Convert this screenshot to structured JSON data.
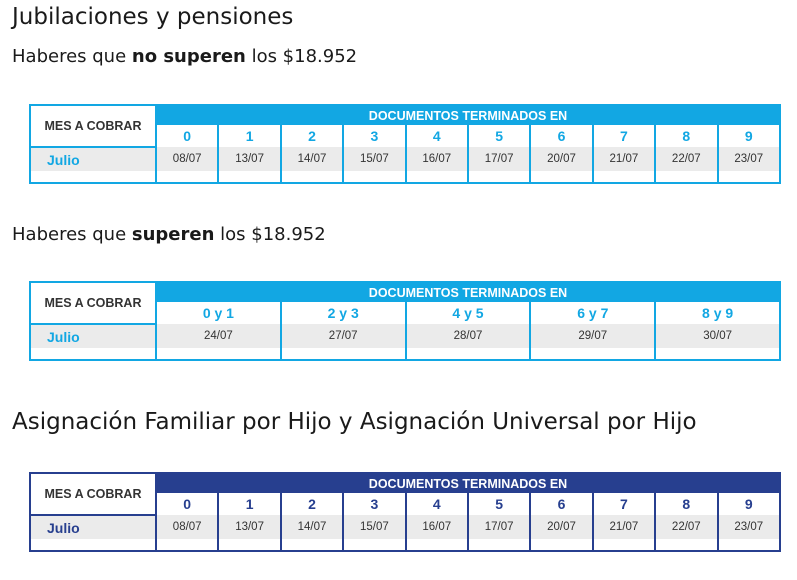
{
  "section1": {
    "title": "Jubilaciones y pensiones",
    "sub1": {
      "prefix": "Haberes que ",
      "bold": "no superen",
      "suffix": " los $18.952"
    },
    "sub2": {
      "prefix": "Haberes que ",
      "bold": "superen",
      "suffix": " los $18.952"
    }
  },
  "section2": {
    "title": "Asignación Familiar por Hijo y Asignación Universal por Hijo"
  },
  "table1": {
    "mes_header": "MES A COBRAR",
    "banner": "DOCUMENTOS TERMINADOS EN",
    "month": "Julio",
    "digits": [
      "0",
      "1",
      "2",
      "3",
      "4",
      "5",
      "6",
      "7",
      "8",
      "9"
    ],
    "dates": [
      "08/07",
      "13/07",
      "14/07",
      "15/07",
      "16/07",
      "17/07",
      "20/07",
      "21/07",
      "22/07",
      "23/07"
    ]
  },
  "table2": {
    "mes_header": "MES A COBRAR",
    "banner": "DOCUMENTOS TERMINADOS EN",
    "month": "Julio",
    "digits": [
      "0 y 1",
      "2 y 3",
      "4 y 5",
      "6 y 7",
      "8 y 9"
    ],
    "dates": [
      "24/07",
      "27/07",
      "28/07",
      "29/07",
      "30/07"
    ]
  },
  "table3": {
    "mes_header": "MES A COBRAR",
    "banner": "DOCUMENTOS TERMINADOS EN",
    "month": "Julio",
    "digits": [
      "0",
      "1",
      "2",
      "3",
      "4",
      "5",
      "6",
      "7",
      "8",
      "9"
    ],
    "dates": [
      "08/07",
      "13/07",
      "14/07",
      "15/07",
      "16/07",
      "17/07",
      "20/07",
      "21/07",
      "22/07",
      "23/07"
    ]
  },
  "colors": {
    "light_blue": "#12a7e3",
    "dark_blue": "#273f8f"
  }
}
